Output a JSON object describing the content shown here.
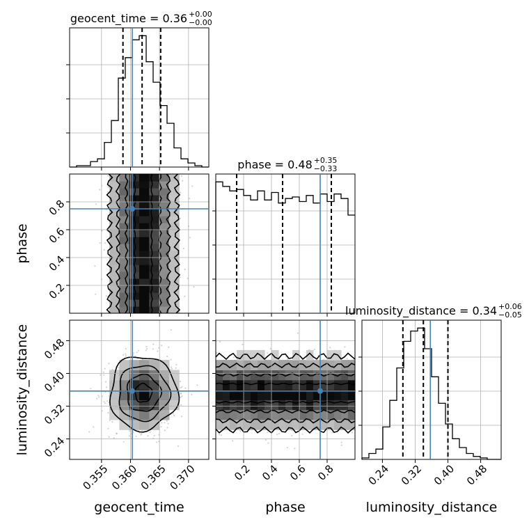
{
  "chart_data": {
    "type": "corner",
    "parameters": [
      {
        "name": "geocent_time",
        "xlabel": "geocent_time",
        "title_main": "geocent_time = 0.36",
        "title_sup": "+0.00",
        "title_sub": "−0.00",
        "range": [
          0.3495,
          0.3735
        ],
        "ticks": [
          0.355,
          0.36,
          0.365,
          0.37
        ],
        "tick_labels": [
          "0.355",
          "0.360",
          "0.365",
          "0.370"
        ],
        "truth": 0.3603,
        "quantiles": [
          0.3587,
          0.362,
          0.3652
        ],
        "hist_edges_start": 0.3495,
        "hist_bin_width": 0.0012,
        "hist_counts": [
          0,
          1,
          1,
          4,
          6,
          18,
          34,
          65,
          80,
          93,
          96,
          77,
          62,
          45,
          32,
          14,
          6,
          3,
          1,
          0
        ]
      },
      {
        "name": "phase",
        "xlabel": "phase",
        "ylabel": "phase",
        "title_main": "phase = 0.48",
        "title_sup": "+0.35",
        "title_sub": "−0.33",
        "range": [
          0.0,
          1.0
        ],
        "ticks": [
          0.2,
          0.4,
          0.6,
          0.8
        ],
        "tick_labels": [
          "0.2",
          "0.4",
          "0.6",
          "0.8"
        ],
        "truth": 0.75,
        "quantiles": [
          0.15,
          0.48,
          0.83
        ],
        "hist_edges_start": 0.0,
        "hist_bin_width": 0.05,
        "hist_counts": [
          87,
          84,
          81,
          82,
          78,
          75,
          81,
          75,
          80,
          73,
          76,
          77,
          74,
          78,
          73,
          79,
          74,
          79,
          76,
          65
        ]
      },
      {
        "name": "luminosity_distance",
        "xlabel": "luminosity_distance",
        "ylabel": "luminosity_distance",
        "title_main": "luminosity_distance = 0.34",
        "title_sup": "+0.06",
        "title_sub": "−0.05",
        "range": [
          0.19,
          0.53
        ],
        "ticks": [
          0.24,
          0.32,
          0.4,
          0.48
        ],
        "tick_labels": [
          "0.24",
          "0.32",
          "0.40",
          "0.48"
        ],
        "truth": 0.357,
        "quantiles": [
          0.29,
          0.34,
          0.4
        ],
        "hist_edges_start": 0.19,
        "hist_bin_width": 0.017,
        "hist_counts": [
          1,
          4,
          7,
          22,
          40,
          62,
          80,
          87,
          89,
          75,
          56,
          38,
          24,
          14,
          8,
          4,
          2,
          1,
          0,
          0
        ]
      }
    ],
    "ylabel_geocent_time": "",
    "grid": true,
    "colors": {
      "truth": "#4682b4",
      "contour": "#000000",
      "points": "#9a9a9a"
    }
  }
}
